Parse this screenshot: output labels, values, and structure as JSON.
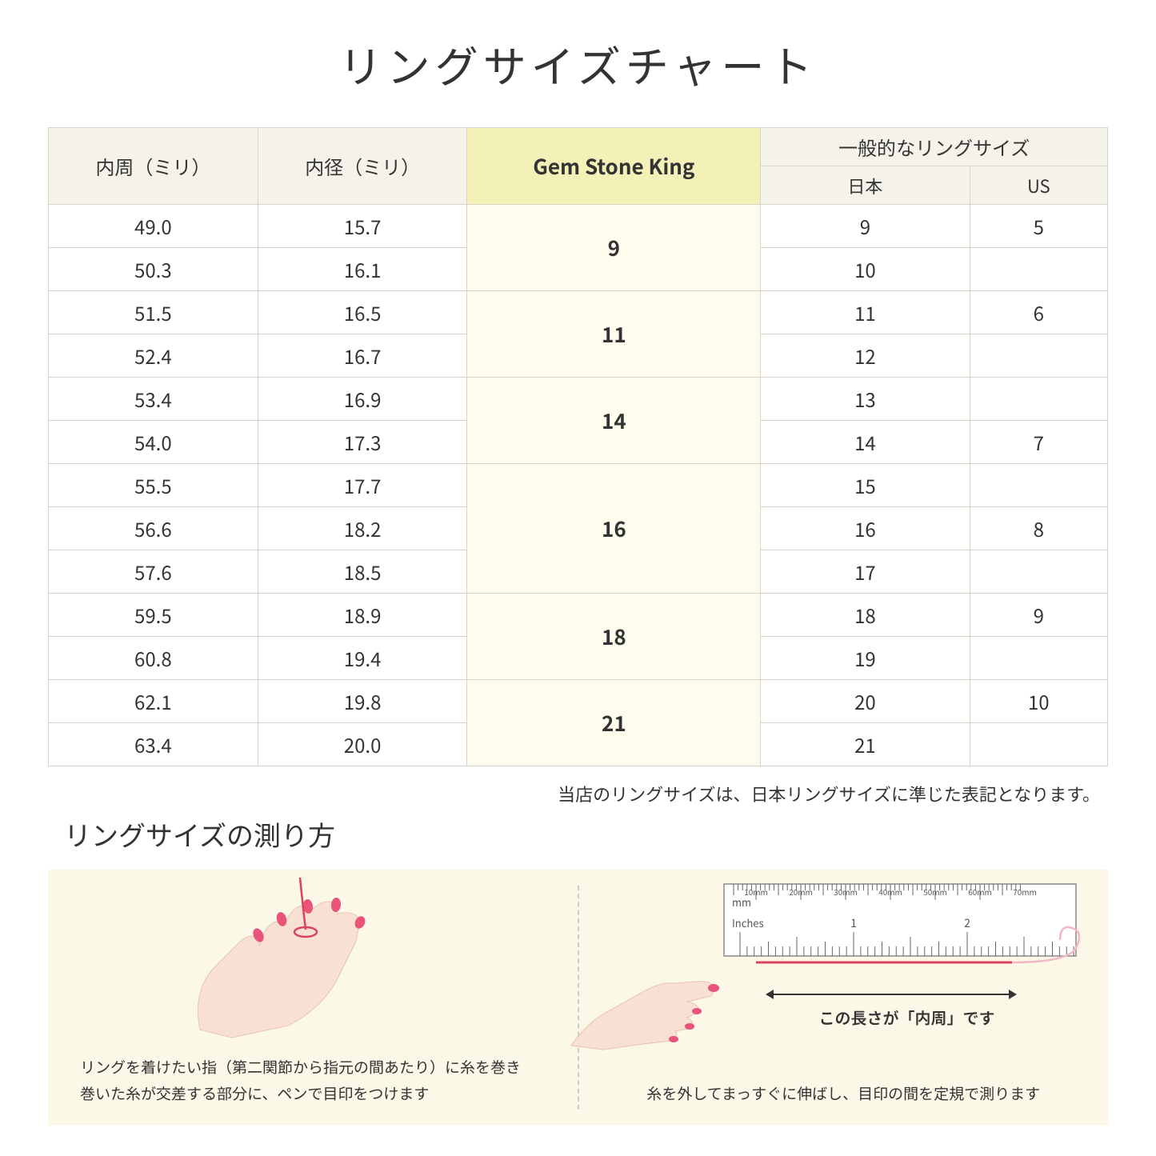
{
  "title": "リングサイズチャート",
  "headers": {
    "circumference": "内周（ミリ）",
    "diameter": "内径（ミリ）",
    "brand": "Gem Stone King",
    "general": "一般的なリングサイズ",
    "japan": "日本",
    "us": "US"
  },
  "groups": [
    {
      "gsk": "9",
      "rows": [
        {
          "c": "49.0",
          "d": "15.7",
          "jp": "9",
          "us": "5"
        },
        {
          "c": "50.3",
          "d": "16.1",
          "jp": "10",
          "us": ""
        }
      ]
    },
    {
      "gsk": "11",
      "rows": [
        {
          "c": "51.5",
          "d": "16.5",
          "jp": "11",
          "us": "6"
        },
        {
          "c": "52.4",
          "d": "16.7",
          "jp": "12",
          "us": ""
        }
      ]
    },
    {
      "gsk": "14",
      "rows": [
        {
          "c": "53.4",
          "d": "16.9",
          "jp": "13",
          "us": ""
        },
        {
          "c": "54.0",
          "d": "17.3",
          "jp": "14",
          "us": "7"
        }
      ]
    },
    {
      "gsk": "16",
      "rows": [
        {
          "c": "55.5",
          "d": "17.7",
          "jp": "15",
          "us": ""
        },
        {
          "c": "56.6",
          "d": "18.2",
          "jp": "16",
          "us": "8"
        },
        {
          "c": "57.6",
          "d": "18.5",
          "jp": "17",
          "us": ""
        }
      ]
    },
    {
      "gsk": "18",
      "rows": [
        {
          "c": "59.5",
          "d": "18.9",
          "jp": "18",
          "us": "9"
        },
        {
          "c": "60.8",
          "d": "19.4",
          "jp": "19",
          "us": ""
        }
      ]
    },
    {
      "gsk": "21",
      "rows": [
        {
          "c": "62.1",
          "d": "19.8",
          "jp": "20",
          "us": "10"
        },
        {
          "c": "63.4",
          "d": "20.0",
          "jp": "21",
          "us": ""
        }
      ]
    }
  ],
  "note": "当店のリングサイズは、日本リングサイズに準じた表記となります。",
  "subtitle": "リングサイズの測り方",
  "instruction_left": "リングを着けたい指（第二関節から指元の間あたり）に糸を巻き\n巻いた糸が交差する部分に、ペンで目印をつけます",
  "instruction_right": "糸を外してまっすぐに伸ばし、目印の間を定規で測ります",
  "ruler_label": "この長さが「内周」です",
  "ruler": {
    "mm_label": "mm",
    "inch_label": "Inches",
    "mm_ticks": [
      "10mm",
      "20mm",
      "30mm",
      "40mm",
      "50mm",
      "60mm",
      "70mm"
    ],
    "inch_ticks": [
      "1",
      "2"
    ]
  },
  "colors": {
    "header_bg": "#f5f3e9",
    "highlight_header_bg": "#f3f0b8",
    "highlight_cell_bg": "#fdfced",
    "border": "#d8d4c8",
    "panel_bg": "#fbf8e8",
    "skin": "#f9e0d4",
    "skin_dark": "#f0cdbb",
    "nail": "#e8547a",
    "thread": "#d9435f"
  }
}
